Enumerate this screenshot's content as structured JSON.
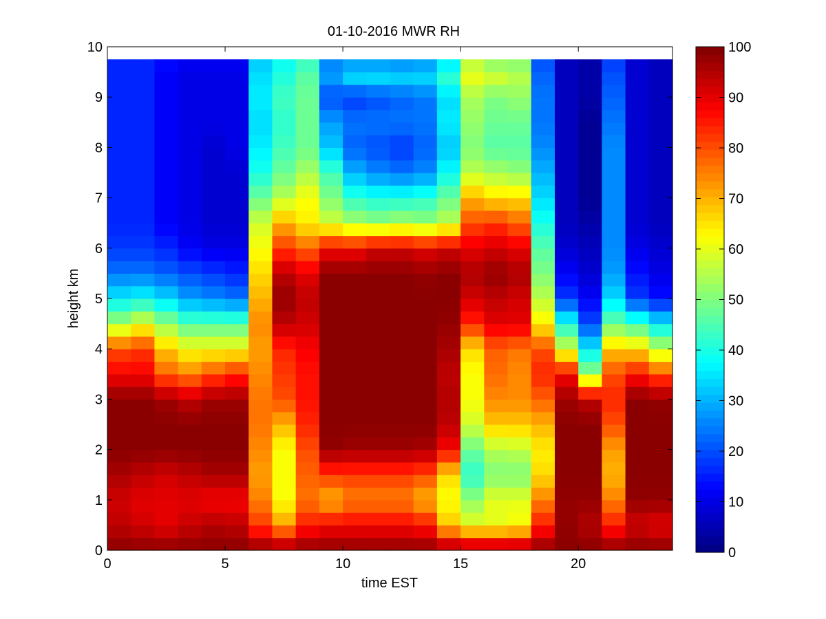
{
  "chart_data": {
    "type": "heatmap",
    "title": "01-10-2016 MWR RH",
    "xlabel": "time EST",
    "ylabel": "height km",
    "xlim": [
      0,
      24
    ],
    "ylim": [
      0,
      10
    ],
    "x_ticks": [
      0,
      5,
      10,
      15,
      20
    ],
    "y_ticks": [
      0,
      1,
      2,
      3,
      4,
      5,
      6,
      7,
      8,
      9,
      10
    ],
    "colorbar": {
      "min": 0,
      "max": 100,
      "ticks": [
        0,
        10,
        20,
        30,
        40,
        50,
        60,
        70,
        80,
        90,
        100
      ],
      "colormap": "jet"
    },
    "time_hours": [
      0.5,
      1.5,
      2.5,
      3.5,
      4.5,
      5.5,
      6.5,
      7.5,
      8.5,
      9.5,
      10.5,
      11.5,
      12.5,
      13.5,
      14.5,
      15.5,
      16.5,
      17.5,
      18.5,
      19.5,
      20.5,
      21.5,
      22.5,
      23.5
    ],
    "height_nodes_km": [
      0,
      0.5,
      1,
      1.5,
      2,
      2.5,
      3,
      3.5,
      4,
      4.5,
      5,
      5.5,
      6,
      6.5,
      7,
      7.5,
      8,
      8.5,
      9,
      9.5,
      9.75
    ],
    "rh_percent": [
      [
        99,
        99,
        99,
        99,
        99,
        99,
        99,
        99,
        99,
        99,
        99,
        99,
        99,
        99,
        99,
        99,
        99,
        99,
        99,
        99,
        99,
        99,
        99,
        99
      ],
      [
        94,
        92,
        90,
        93,
        95,
        94,
        82,
        72,
        85,
        88,
        88,
        88,
        88,
        86,
        68,
        60,
        60,
        62,
        85,
        98,
        95,
        85,
        92,
        90
      ],
      [
        92,
        90,
        90,
        90,
        88,
        88,
        75,
        62,
        76,
        70,
        75,
        75,
        75,
        70,
        62,
        52,
        60,
        60,
        75,
        98,
        98,
        75,
        98,
        98
      ],
      [
        96,
        94,
        92,
        94,
        96,
        96,
        72,
        62,
        78,
        82,
        82,
        82,
        82,
        80,
        66,
        42,
        50,
        50,
        66,
        99,
        99,
        70,
        99,
        99
      ],
      [
        99,
        99,
        99,
        99,
        99,
        99,
        74,
        62,
        80,
        98,
        97,
        97,
        97,
        96,
        88,
        48,
        55,
        56,
        64,
        99,
        99,
        72,
        99,
        99
      ],
      [
        99,
        99,
        99,
        99,
        99,
        99,
        76,
        70,
        84,
        99,
        99,
        99,
        99,
        99,
        94,
        58,
        68,
        68,
        70,
        99,
        99,
        80,
        99,
        99
      ],
      [
        99,
        99,
        97,
        94,
        97,
        97,
        76,
        80,
        86,
        99,
        99,
        99,
        99,
        99,
        95,
        62,
        74,
        74,
        78,
        97,
        94,
        84,
        99,
        98
      ],
      [
        88,
        88,
        78,
        75,
        80,
        84,
        74,
        82,
        86,
        99,
        99,
        99,
        99,
        99,
        94,
        62,
        77,
        74,
        84,
        88,
        52,
        80,
        86,
        80
      ],
      [
        80,
        82,
        68,
        62,
        62,
        62,
        72,
        84,
        88,
        99,
        99,
        99,
        99,
        99,
        96,
        66,
        78,
        76,
        80,
        58,
        36,
        68,
        66,
        56
      ],
      [
        54,
        60,
        52,
        46,
        46,
        46,
        74,
        94,
        92,
        99,
        99,
        99,
        99,
        99,
        98,
        84,
        90,
        90,
        64,
        40,
        20,
        48,
        44,
        36
      ],
      [
        36,
        38,
        34,
        28,
        26,
        24,
        70,
        98,
        94,
        99,
        99,
        99,
        99,
        99,
        99,
        92,
        94,
        92,
        56,
        18,
        12,
        34,
        18,
        14
      ],
      [
        24,
        24,
        22,
        20,
        18,
        16,
        66,
        94,
        90,
        99,
        99,
        99,
        99,
        98,
        99,
        96,
        98,
        96,
        50,
        12,
        8,
        28,
        14,
        10
      ],
      [
        18,
        18,
        16,
        12,
        10,
        10,
        62,
        82,
        78,
        88,
        88,
        92,
        92,
        90,
        92,
        90,
        92,
        90,
        46,
        8,
        6,
        26,
        10,
        8
      ],
      [
        16,
        16,
        12,
        10,
        8,
        8,
        58,
        70,
        64,
        58,
        54,
        52,
        54,
        52,
        56,
        80,
        82,
        78,
        40,
        6,
        4,
        26,
        8,
        6
      ],
      [
        16,
        16,
        12,
        10,
        8,
        8,
        48,
        56,
        62,
        50,
        42,
        40,
        40,
        42,
        48,
        70,
        66,
        66,
        34,
        6,
        2,
        26,
        8,
        6
      ],
      [
        16,
        16,
        12,
        10,
        8,
        8,
        40,
        48,
        54,
        44,
        30,
        26,
        24,
        26,
        38,
        56,
        54,
        52,
        30,
        6,
        2,
        26,
        8,
        6
      ],
      [
        16,
        16,
        12,
        10,
        8,
        10,
        36,
        44,
        48,
        32,
        22,
        20,
        18,
        22,
        32,
        50,
        46,
        46,
        26,
        6,
        2,
        26,
        8,
        6
      ],
      [
        16,
        16,
        12,
        10,
        10,
        10,
        34,
        42,
        48,
        28,
        24,
        24,
        24,
        24,
        36,
        52,
        48,
        48,
        24,
        6,
        2,
        24,
        8,
        6
      ],
      [
        16,
        16,
        12,
        10,
        10,
        10,
        36,
        44,
        48,
        20,
        18,
        20,
        22,
        24,
        34,
        54,
        50,
        52,
        24,
        6,
        4,
        22,
        8,
        6
      ],
      [
        16,
        16,
        12,
        10,
        10,
        10,
        34,
        40,
        46,
        30,
        38,
        38,
        36,
        36,
        44,
        62,
        60,
        56,
        22,
        6,
        4,
        20,
        8,
        6
      ],
      [
        16,
        16,
        14,
        12,
        12,
        12,
        32,
        38,
        42,
        22,
        20,
        20,
        20,
        22,
        30,
        52,
        46,
        48,
        20,
        6,
        4,
        18,
        8,
        6
      ]
    ]
  }
}
